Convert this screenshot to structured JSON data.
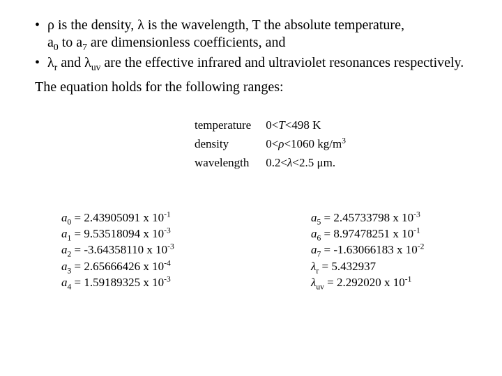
{
  "bullets": {
    "b1_part1": "ρ is the density, λ is the wavelength, T the absolute temperature,",
    "b1_part2_a": "a",
    "b1_sub0": "0",
    "b1_part2_b": " to a",
    "b1_sub7": "7",
    "b1_part2_c": " are dimensionless coefficients, and",
    "b2_a": "λ",
    "b2_sub_r": "r",
    "b2_b": " and λ",
    "b2_sub_uv": "uv",
    "b2_c": " are the effective infrared and ultraviolet resonances respectively."
  },
  "body_line": "The equation holds for the following ranges:",
  "ranges": {
    "rows": [
      {
        "label": "temperature",
        "expr_pre": "0<",
        "expr_var": "T",
        "expr_post": "<498 K"
      },
      {
        "label": "density",
        "expr_pre": "0<",
        "expr_var": "ρ",
        "expr_post": "<1060 kg/m",
        "super": "3"
      },
      {
        "label": "wavelength",
        "expr_pre": "0.2<",
        "expr_var": "λ",
        "expr_post": "<2.5 μm."
      }
    ]
  },
  "coeffs": {
    "left": [
      {
        "sym": "a",
        "sub": "0",
        "mant": "2.43905091",
        "exp": "-1"
      },
      {
        "sym": "a",
        "sub": "1",
        "mant": "9.53518094",
        "exp": "-3"
      },
      {
        "sym": "a",
        "sub": "2",
        "mant": "-3.64358110",
        "exp": "-3"
      },
      {
        "sym": "a",
        "sub": "3",
        "mant": "2.65666426",
        "exp": "-4"
      },
      {
        "sym": "a",
        "sub": "4",
        "mant": "1.59189325",
        "exp": "-3"
      }
    ],
    "right": [
      {
        "sym": "a",
        "sub": "5",
        "mant": "2.45733798",
        "exp": "-3"
      },
      {
        "sym": "a",
        "sub": "6",
        "mant": "8.97478251",
        "exp": "-1"
      },
      {
        "sym": "a",
        "sub": "7",
        "mant": "-1.63066183",
        "exp": "-2"
      },
      {
        "sym": "λ",
        "sub": "r",
        "plain": "5.432937"
      },
      {
        "sym": "λ",
        "sub": "uv",
        "mant": "2.292020",
        "exp": "-1"
      }
    ]
  }
}
